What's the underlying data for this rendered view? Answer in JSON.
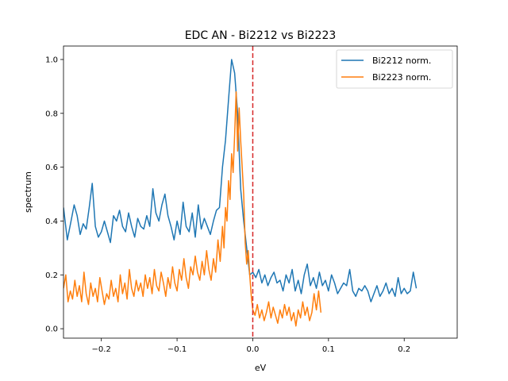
{
  "chart_data": {
    "type": "line",
    "title": "EDC AN - Bi2212 vs Bi2223",
    "xlabel": "eV",
    "ylabel": "spectrum",
    "xlim": [
      -0.25,
      0.27
    ],
    "ylim": [
      -0.035,
      1.05
    ],
    "xticks": [
      -0.2,
      -0.1,
      0.0,
      0.1,
      0.2
    ],
    "xtick_labels": [
      "−0.2",
      "−0.1",
      "0.0",
      "0.1",
      "0.2"
    ],
    "yticks": [
      0.0,
      0.2,
      0.4,
      0.6,
      0.8,
      1.0
    ],
    "ytick_labels": [
      "0.0",
      "0.2",
      "0.4",
      "0.6",
      "0.8",
      "1.0"
    ],
    "grid": false,
    "legend_position": "top-right",
    "vline": {
      "x": 0.0,
      "color": "#d62728",
      "style": "dashed"
    },
    "series": [
      {
        "name": "Bi2212 norm.",
        "color": "#1f77b4",
        "points": [
          [
            -0.25,
            0.45
          ],
          [
            -0.245,
            0.33
          ],
          [
            -0.24,
            0.4
          ],
          [
            -0.236,
            0.46
          ],
          [
            -0.232,
            0.42
          ],
          [
            -0.228,
            0.35
          ],
          [
            -0.224,
            0.39
          ],
          [
            -0.22,
            0.37
          ],
          [
            -0.216,
            0.45
          ],
          [
            -0.212,
            0.54
          ],
          [
            -0.208,
            0.38
          ],
          [
            -0.204,
            0.34
          ],
          [
            -0.2,
            0.36
          ],
          [
            -0.196,
            0.4
          ],
          [
            -0.192,
            0.36
          ],
          [
            -0.188,
            0.32
          ],
          [
            -0.184,
            0.42
          ],
          [
            -0.18,
            0.4
          ],
          [
            -0.176,
            0.44
          ],
          [
            -0.172,
            0.38
          ],
          [
            -0.168,
            0.36
          ],
          [
            -0.164,
            0.43
          ],
          [
            -0.16,
            0.38
          ],
          [
            -0.156,
            0.34
          ],
          [
            -0.152,
            0.41
          ],
          [
            -0.148,
            0.38
          ],
          [
            -0.144,
            0.37
          ],
          [
            -0.14,
            0.42
          ],
          [
            -0.136,
            0.38
          ],
          [
            -0.132,
            0.52
          ],
          [
            -0.128,
            0.43
          ],
          [
            -0.124,
            0.4
          ],
          [
            -0.12,
            0.46
          ],
          [
            -0.116,
            0.5
          ],
          [
            -0.112,
            0.42
          ],
          [
            -0.108,
            0.38
          ],
          [
            -0.104,
            0.33
          ],
          [
            -0.1,
            0.4
          ],
          [
            -0.096,
            0.35
          ],
          [
            -0.092,
            0.47
          ],
          [
            -0.088,
            0.38
          ],
          [
            -0.084,
            0.36
          ],
          [
            -0.08,
            0.43
          ],
          [
            -0.076,
            0.34
          ],
          [
            -0.072,
            0.46
          ],
          [
            -0.068,
            0.37
          ],
          [
            -0.064,
            0.41
          ],
          [
            -0.06,
            0.38
          ],
          [
            -0.056,
            0.35
          ],
          [
            -0.052,
            0.4
          ],
          [
            -0.048,
            0.44
          ],
          [
            -0.044,
            0.45
          ],
          [
            -0.04,
            0.6
          ],
          [
            -0.036,
            0.7
          ],
          [
            -0.032,
            0.85
          ],
          [
            -0.028,
            1.0
          ],
          [
            -0.024,
            0.95
          ],
          [
            -0.02,
            0.8
          ],
          [
            -0.016,
            0.52
          ],
          [
            -0.012,
            0.4
          ],
          [
            -0.008,
            0.3
          ],
          [
            -0.004,
            0.2
          ],
          [
            0.0,
            0.21
          ],
          [
            0.004,
            0.19
          ],
          [
            0.008,
            0.22
          ],
          [
            0.012,
            0.17
          ],
          [
            0.016,
            0.2
          ],
          [
            0.02,
            0.16
          ],
          [
            0.024,
            0.19
          ],
          [
            0.028,
            0.21
          ],
          [
            0.032,
            0.17
          ],
          [
            0.036,
            0.18
          ],
          [
            0.04,
            0.14
          ],
          [
            0.044,
            0.2
          ],
          [
            0.048,
            0.17
          ],
          [
            0.052,
            0.22
          ],
          [
            0.056,
            0.14
          ],
          [
            0.06,
            0.18
          ],
          [
            0.064,
            0.13
          ],
          [
            0.068,
            0.2
          ],
          [
            0.072,
            0.24
          ],
          [
            0.076,
            0.16
          ],
          [
            0.08,
            0.19
          ],
          [
            0.084,
            0.15
          ],
          [
            0.088,
            0.21
          ],
          [
            0.092,
            0.16
          ],
          [
            0.096,
            0.18
          ],
          [
            0.1,
            0.14
          ],
          [
            0.104,
            0.2
          ],
          [
            0.108,
            0.17
          ],
          [
            0.112,
            0.13
          ],
          [
            0.116,
            0.15
          ],
          [
            0.12,
            0.17
          ],
          [
            0.124,
            0.16
          ],
          [
            0.128,
            0.22
          ],
          [
            0.132,
            0.14
          ],
          [
            0.136,
            0.12
          ],
          [
            0.14,
            0.15
          ],
          [
            0.144,
            0.14
          ],
          [
            0.148,
            0.16
          ],
          [
            0.152,
            0.14
          ],
          [
            0.156,
            0.1
          ],
          [
            0.16,
            0.13
          ],
          [
            0.164,
            0.16
          ],
          [
            0.168,
            0.12
          ],
          [
            0.172,
            0.14
          ],
          [
            0.176,
            0.17
          ],
          [
            0.18,
            0.13
          ],
          [
            0.184,
            0.15
          ],
          [
            0.188,
            0.12
          ],
          [
            0.192,
            0.19
          ],
          [
            0.196,
            0.13
          ],
          [
            0.2,
            0.15
          ],
          [
            0.204,
            0.13
          ],
          [
            0.208,
            0.14
          ],
          [
            0.212,
            0.21
          ],
          [
            0.216,
            0.15
          ]
        ]
      },
      {
        "name": "Bi2223 norm.",
        "color": "#ff7f0e",
        "points": [
          [
            -0.25,
            0.15
          ],
          [
            -0.247,
            0.2
          ],
          [
            -0.244,
            0.1
          ],
          [
            -0.241,
            0.14
          ],
          [
            -0.238,
            0.11
          ],
          [
            -0.235,
            0.18
          ],
          [
            -0.232,
            0.12
          ],
          [
            -0.229,
            0.16
          ],
          [
            -0.226,
            0.1
          ],
          [
            -0.223,
            0.21
          ],
          [
            -0.22,
            0.13
          ],
          [
            -0.217,
            0.09
          ],
          [
            -0.214,
            0.17
          ],
          [
            -0.211,
            0.12
          ],
          [
            -0.208,
            0.15
          ],
          [
            -0.205,
            0.1
          ],
          [
            -0.202,
            0.19
          ],
          [
            -0.199,
            0.14
          ],
          [
            -0.196,
            0.09
          ],
          [
            -0.193,
            0.13
          ],
          [
            -0.19,
            0.11
          ],
          [
            -0.187,
            0.18
          ],
          [
            -0.184,
            0.12
          ],
          [
            -0.181,
            0.15
          ],
          [
            -0.178,
            0.1
          ],
          [
            -0.175,
            0.2
          ],
          [
            -0.172,
            0.13
          ],
          [
            -0.169,
            0.17
          ],
          [
            -0.166,
            0.11
          ],
          [
            -0.163,
            0.22
          ],
          [
            -0.16,
            0.15
          ],
          [
            -0.157,
            0.12
          ],
          [
            -0.154,
            0.18
          ],
          [
            -0.151,
            0.14
          ],
          [
            -0.148,
            0.17
          ],
          [
            -0.145,
            0.12
          ],
          [
            -0.142,
            0.2
          ],
          [
            -0.139,
            0.15
          ],
          [
            -0.136,
            0.19
          ],
          [
            -0.133,
            0.13
          ],
          [
            -0.13,
            0.22
          ],
          [
            -0.127,
            0.16
          ],
          [
            -0.124,
            0.14
          ],
          [
            -0.121,
            0.21
          ],
          [
            -0.118,
            0.17
          ],
          [
            -0.115,
            0.12
          ],
          [
            -0.112,
            0.19
          ],
          [
            -0.109,
            0.15
          ],
          [
            -0.106,
            0.23
          ],
          [
            -0.103,
            0.17
          ],
          [
            -0.1,
            0.14
          ],
          [
            -0.097,
            0.22
          ],
          [
            -0.094,
            0.18
          ],
          [
            -0.091,
            0.26
          ],
          [
            -0.088,
            0.19
          ],
          [
            -0.085,
            0.15
          ],
          [
            -0.082,
            0.23
          ],
          [
            -0.079,
            0.2
          ],
          [
            -0.076,
            0.27
          ],
          [
            -0.073,
            0.21
          ],
          [
            -0.07,
            0.18
          ],
          [
            -0.067,
            0.25
          ],
          [
            -0.064,
            0.2
          ],
          [
            -0.061,
            0.29
          ],
          [
            -0.058,
            0.22
          ],
          [
            -0.055,
            0.18
          ],
          [
            -0.052,
            0.26
          ],
          [
            -0.049,
            0.21
          ],
          [
            -0.046,
            0.33
          ],
          [
            -0.043,
            0.25
          ],
          [
            -0.04,
            0.38
          ],
          [
            -0.038,
            0.3
          ],
          [
            -0.036,
            0.45
          ],
          [
            -0.034,
            0.4
          ],
          [
            -0.032,
            0.55
          ],
          [
            -0.03,
            0.48
          ],
          [
            -0.028,
            0.65
          ],
          [
            -0.026,
            0.58
          ],
          [
            -0.024,
            0.72
          ],
          [
            -0.022,
            0.88
          ],
          [
            -0.02,
            0.66
          ],
          [
            -0.018,
            0.82
          ],
          [
            -0.016,
            0.7
          ],
          [
            -0.014,
            0.6
          ],
          [
            -0.012,
            0.5
          ],
          [
            -0.01,
            0.32
          ],
          [
            -0.008,
            0.24
          ],
          [
            -0.006,
            0.29
          ],
          [
            -0.004,
            0.2
          ],
          [
            -0.002,
            0.12
          ],
          [
            0.0,
            0.07
          ],
          [
            0.003,
            0.05
          ],
          [
            0.006,
            0.09
          ],
          [
            0.009,
            0.04
          ],
          [
            0.012,
            0.07
          ],
          [
            0.015,
            0.03
          ],
          [
            0.018,
            0.06
          ],
          [
            0.021,
            0.1
          ],
          [
            0.024,
            0.04
          ],
          [
            0.027,
            0.08
          ],
          [
            0.03,
            0.05
          ],
          [
            0.033,
            0.02
          ],
          [
            0.036,
            0.07
          ],
          [
            0.039,
            0.04
          ],
          [
            0.042,
            0.09
          ],
          [
            0.045,
            0.05
          ],
          [
            0.048,
            0.08
          ],
          [
            0.051,
            0.03
          ],
          [
            0.054,
            0.06
          ],
          [
            0.057,
            0.01
          ],
          [
            0.06,
            0.07
          ],
          [
            0.063,
            0.04
          ],
          [
            0.066,
            0.1
          ],
          [
            0.069,
            0.05
          ],
          [
            0.072,
            0.08
          ],
          [
            0.075,
            0.03
          ],
          [
            0.078,
            0.06
          ],
          [
            0.081,
            0.13
          ],
          [
            0.084,
            0.07
          ],
          [
            0.087,
            0.14
          ],
          [
            0.09,
            0.06
          ]
        ]
      }
    ]
  }
}
